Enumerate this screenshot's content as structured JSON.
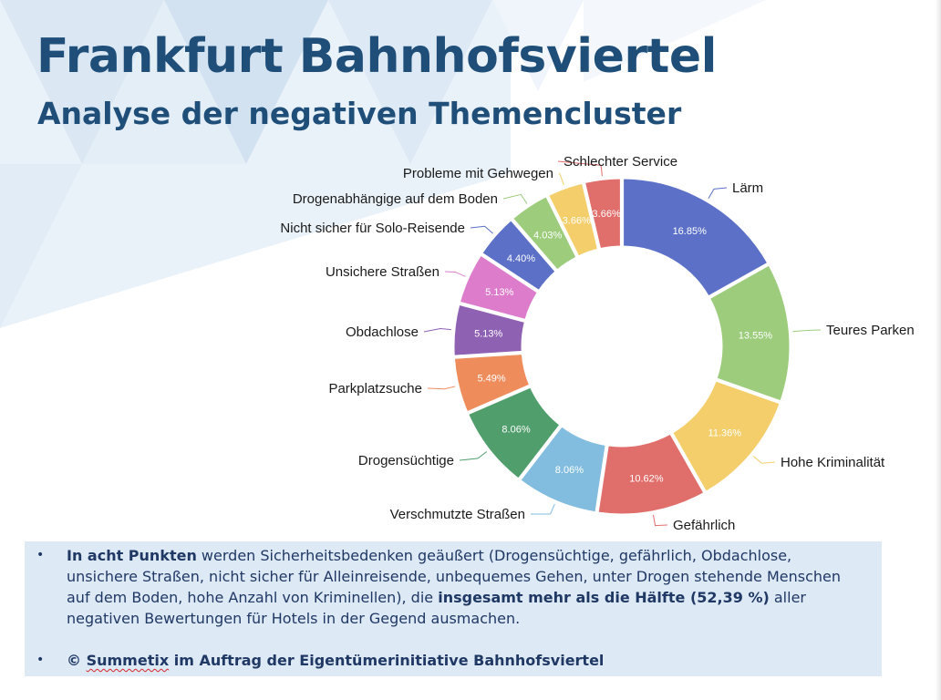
{
  "title": "Frankfurt Bahnhofsviertel",
  "subtitle": "Analyse der negativen Themencluster",
  "chart_data": {
    "type": "donut",
    "title": "",
    "categories": [
      "Lärm",
      "Teures Parken",
      "Hohe Kriminalität",
      "Gefährlich",
      "Verschmutzte Straßen",
      "Drogensüchtige",
      "Parkplatzsuche",
      "Obdachlose",
      "Unsichere Straßen",
      "Nicht sicher für Solo-Reisende",
      "Drogenabhängige auf dem Boden",
      "Probleme mit Gehwegen",
      "Schlechter Service"
    ],
    "values": [
      16.85,
      13.55,
      11.36,
      10.62,
      8.06,
      8.06,
      5.49,
      5.13,
      5.13,
      4.4,
      4.03,
      3.66,
      3.66
    ],
    "value_labels": [
      "16.85%",
      "13.55%",
      "11.36%",
      "10.62%",
      "8.06%",
      "8.06%",
      "5.49%",
      "5.13%",
      "5.13%",
      "4.40%",
      "4.03%",
      "3.66%",
      "3.66%"
    ],
    "colors": [
      "#5b70c6",
      "#9ccc7c",
      "#f3ce6a",
      "#e06e6b",
      "#82bde0",
      "#4f9e6c",
      "#ee8c5c",
      "#8e61b3",
      "#dd7ccb",
      "#5b70c6",
      "#9ccc7c",
      "#f3ce6a",
      "#e06e6b"
    ],
    "legend": "none"
  },
  "notes": {
    "bullet_symbol": "•",
    "b1_bold1": "In acht Punkten",
    "b1_text1": " werden Sicherheitsbedenken geäußert (Drogensüchtige, gefährlich, Obdachlose, unsichere Straßen, nicht sicher für Alleinreisende, unbequemes Gehen, unter Drogen stehende Menschen auf dem Boden, hohe Anzahl von Kriminellen), die ",
    "b1_bold2": "insgesamt mehr als die Hälfte (52,39 %)",
    "b1_text2": " aller negativen Bewertungen für Hotels in der Gegend ausmachen.",
    "b2_prefix": "© ",
    "b2_brand": "Summetix",
    "b2_rest": " im Auftrag der Eigentümerinitiative Bahnhofsviertel"
  }
}
